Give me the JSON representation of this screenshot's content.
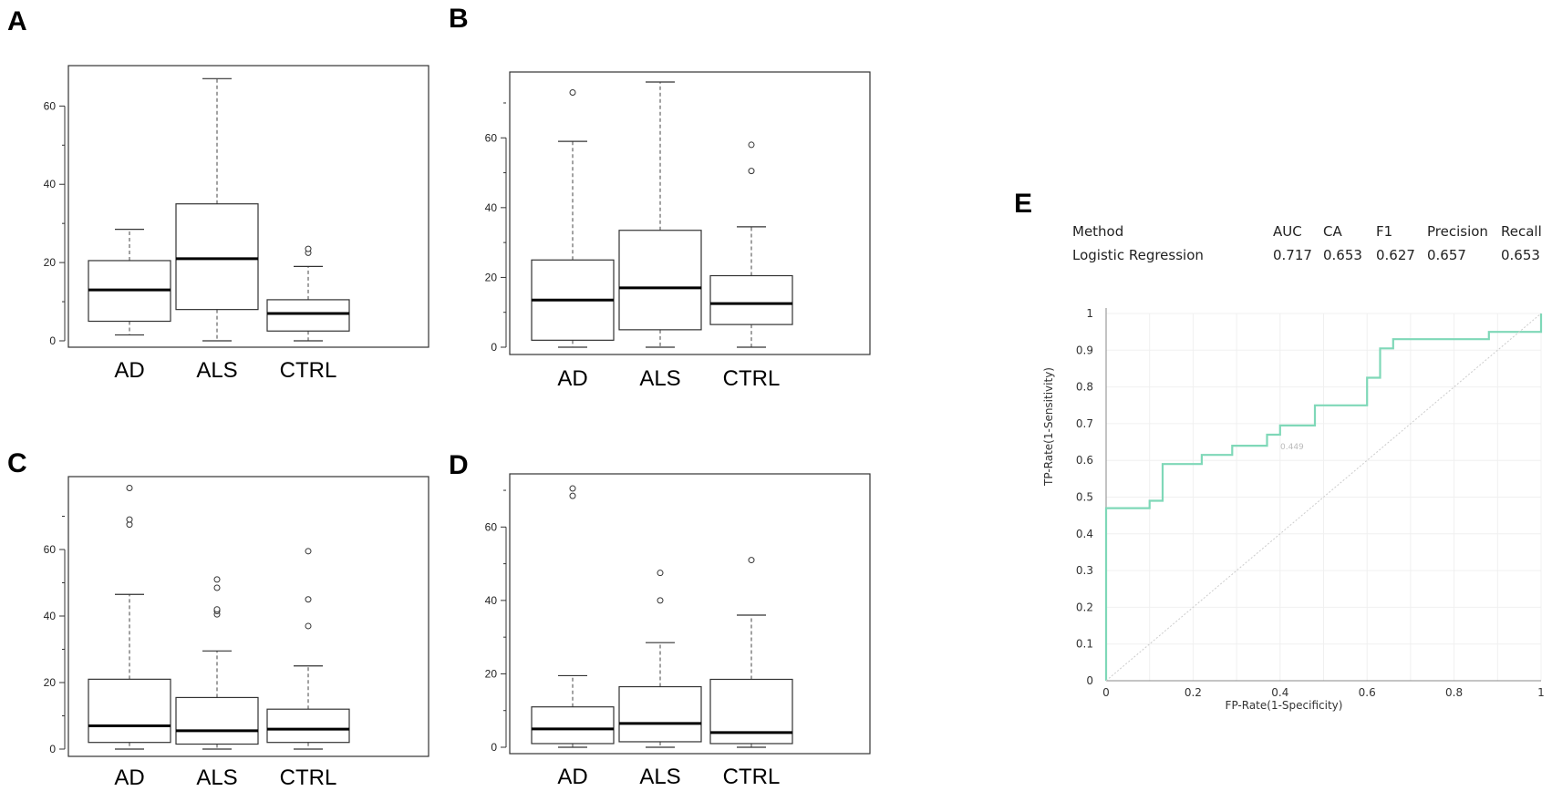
{
  "panel_labels": [
    "A",
    "B",
    "C",
    "D",
    "E"
  ],
  "chart_data": [
    {
      "id": "A",
      "type": "box",
      "ylim": [
        0,
        68
      ],
      "yticks": [
        0,
        20,
        40,
        60
      ],
      "minor_yticks": [
        10,
        30,
        50
      ],
      "categories": [
        "AD",
        "ALS",
        "CTRL"
      ],
      "boxes": [
        {
          "label": "AD",
          "whislo": 1.5,
          "q1": 5,
          "med": 13,
          "q3": 20.5,
          "whishi": 28.5,
          "fliers": []
        },
        {
          "label": "ALS",
          "whislo": 0,
          "q1": 8,
          "med": 21,
          "q3": 35,
          "whishi": 67,
          "fliers": []
        },
        {
          "label": "CTRL",
          "whislo": 0,
          "q1": 2.5,
          "med": 7,
          "q3": 10.5,
          "whishi": 19,
          "fliers": [
            22.5,
            23.5
          ]
        }
      ]
    },
    {
      "id": "B",
      "type": "box",
      "ylim": [
        0,
        76
      ],
      "yticks": [
        0,
        20,
        40,
        60
      ],
      "minor_yticks": [
        10,
        30,
        50,
        70
      ],
      "categories": [
        "AD",
        "ALS",
        "CTRL"
      ],
      "boxes": [
        {
          "label": "AD",
          "whislo": 0,
          "q1": 2,
          "med": 13.5,
          "q3": 25,
          "whishi": 59,
          "fliers": [
            73
          ]
        },
        {
          "label": "ALS",
          "whislo": 0,
          "q1": 5,
          "med": 17,
          "q3": 33.5,
          "whishi": 76,
          "fliers": []
        },
        {
          "label": "CTRL",
          "whislo": 0,
          "q1": 6.5,
          "med": 12.5,
          "q3": 20.5,
          "whishi": 34.5,
          "fliers": [
            50.5,
            58
          ]
        }
      ]
    },
    {
      "id": "C",
      "type": "box",
      "ylim": [
        0,
        80
      ],
      "yticks": [
        0,
        20,
        40,
        60
      ],
      "minor_yticks": [
        10,
        30,
        50,
        70
      ],
      "categories": [
        "AD",
        "ALS",
        "CTRL"
      ],
      "boxes": [
        {
          "label": "AD",
          "whislo": 0,
          "q1": 2,
          "med": 7,
          "q3": 21,
          "whishi": 46.5,
          "fliers": [
            67.5,
            69,
            78.5
          ]
        },
        {
          "label": "ALS",
          "whislo": 0,
          "q1": 1.5,
          "med": 5.5,
          "q3": 15.5,
          "whishi": 29.5,
          "fliers": [
            40.5,
            41.5,
            42,
            48.5,
            51
          ]
        },
        {
          "label": "CTRL",
          "whislo": 0,
          "q1": 2,
          "med": 6,
          "q3": 12,
          "whishi": 25,
          "fliers": [
            37,
            45,
            59.5
          ]
        }
      ]
    },
    {
      "id": "D",
      "type": "box",
      "ylim": [
        0,
        72
      ],
      "yticks": [
        0,
        20,
        40,
        60
      ],
      "minor_yticks": [
        10,
        30,
        50,
        70
      ],
      "categories": [
        "AD",
        "ALS",
        "CTRL"
      ],
      "boxes": [
        {
          "label": "AD",
          "whislo": 0,
          "q1": 1,
          "med": 5,
          "q3": 11,
          "whishi": 19.5,
          "fliers": [
            68.5,
            70.5
          ]
        },
        {
          "label": "ALS",
          "whislo": 0,
          "q1": 1.5,
          "med": 6.5,
          "q3": 16.5,
          "whishi": 28.5,
          "fliers": [
            40,
            47.5
          ]
        },
        {
          "label": "CTRL",
          "whislo": 0,
          "q1": 1,
          "med": 4,
          "q3": 18.5,
          "whishi": 36,
          "fliers": [
            51
          ]
        }
      ]
    },
    {
      "id": "E",
      "type": "line",
      "title": "",
      "xlabel": "FP-Rate(1-Specificity)",
      "ylabel": "TP-Rate(1-Sensitivity)",
      "xlim": [
        0,
        1
      ],
      "ylim": [
        0,
        1
      ],
      "xticks": [
        0,
        0.2,
        0.4,
        0.6,
        0.8,
        1
      ],
      "xtick_labels": [
        "0",
        "0.2",
        "0.4",
        "0.6",
        "0.8",
        "1"
      ],
      "yticks": [
        0,
        0.1,
        0.2,
        0.3,
        0.4,
        0.5,
        0.6,
        0.7,
        0.8,
        0.9,
        1
      ],
      "ytick_labels": [
        "0",
        "0.1",
        "0.2",
        "0.3",
        "0.4",
        "0.5",
        "0.6",
        "0.7",
        "0.8",
        "0.9",
        "1"
      ],
      "grid": true,
      "series": [
        {
          "name": "Logistic Regression",
          "color": "#7fd8b8",
          "x": [
            0,
            0,
            0.1,
            0.1,
            0.13,
            0.13,
            0.22,
            0.22,
            0.29,
            0.29,
            0.37,
            0.37,
            0.4,
            0.4,
            0.48,
            0.48,
            0.6,
            0.6,
            0.63,
            0.63,
            0.66,
            0.66,
            0.88,
            0.88,
            1,
            1
          ],
          "y": [
            0,
            0.47,
            0.47,
            0.49,
            0.49,
            0.59,
            0.59,
            0.615,
            0.615,
            0.64,
            0.64,
            0.67,
            0.67,
            0.695,
            0.695,
            0.75,
            0.75,
            0.825,
            0.825,
            0.905,
            0.905,
            0.93,
            0.93,
            0.95,
            0.95,
            1
          ]
        },
        {
          "name": "diagonal",
          "color": "#cccccc",
          "x": [
            0,
            1
          ],
          "y": [
            0,
            1
          ]
        }
      ],
      "annotation": "0.449",
      "metrics_table": {
        "headers": [
          "Method",
          "AUC",
          "CA",
          "F1",
          "Precision",
          "Recall"
        ],
        "rows": [
          [
            "Logistic Regression",
            "0.717",
            "0.653",
            "0.627",
            "0.657",
            "0.653"
          ]
        ]
      }
    }
  ]
}
